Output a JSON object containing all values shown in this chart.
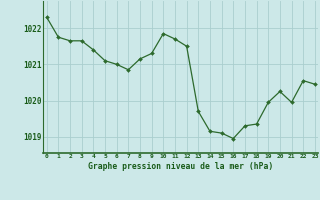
{
  "x": [
    0,
    1,
    2,
    3,
    4,
    5,
    6,
    7,
    8,
    9,
    10,
    11,
    12,
    13,
    14,
    15,
    16,
    17,
    18,
    19,
    20,
    21,
    22,
    23
  ],
  "y": [
    1022.3,
    1021.75,
    1021.65,
    1021.65,
    1021.4,
    1021.1,
    1021.0,
    1020.85,
    1021.15,
    1021.3,
    1021.85,
    1021.7,
    1021.5,
    1019.7,
    1019.15,
    1019.1,
    1018.95,
    1019.3,
    1019.35,
    1019.95,
    1020.25,
    1019.95,
    1020.55,
    1020.45
  ],
  "ylim": [
    1018.55,
    1022.75
  ],
  "yticks": [
    1019,
    1020,
    1021,
    1022
  ],
  "xticks": [
    0,
    1,
    2,
    3,
    4,
    5,
    6,
    7,
    8,
    9,
    10,
    11,
    12,
    13,
    14,
    15,
    16,
    17,
    18,
    19,
    20,
    21,
    22,
    23
  ],
  "line_color": "#2d6a2d",
  "marker_color": "#2d6a2d",
  "bg_color": "#cce8e8",
  "grid_color": "#aacece",
  "xlabel": "Graphe pression niveau de la mer (hPa)",
  "tick_color": "#1a5c1a",
  "bottom_bar_color": "#2d6a2d",
  "figsize": [
    3.2,
    2.0
  ],
  "dpi": 100
}
